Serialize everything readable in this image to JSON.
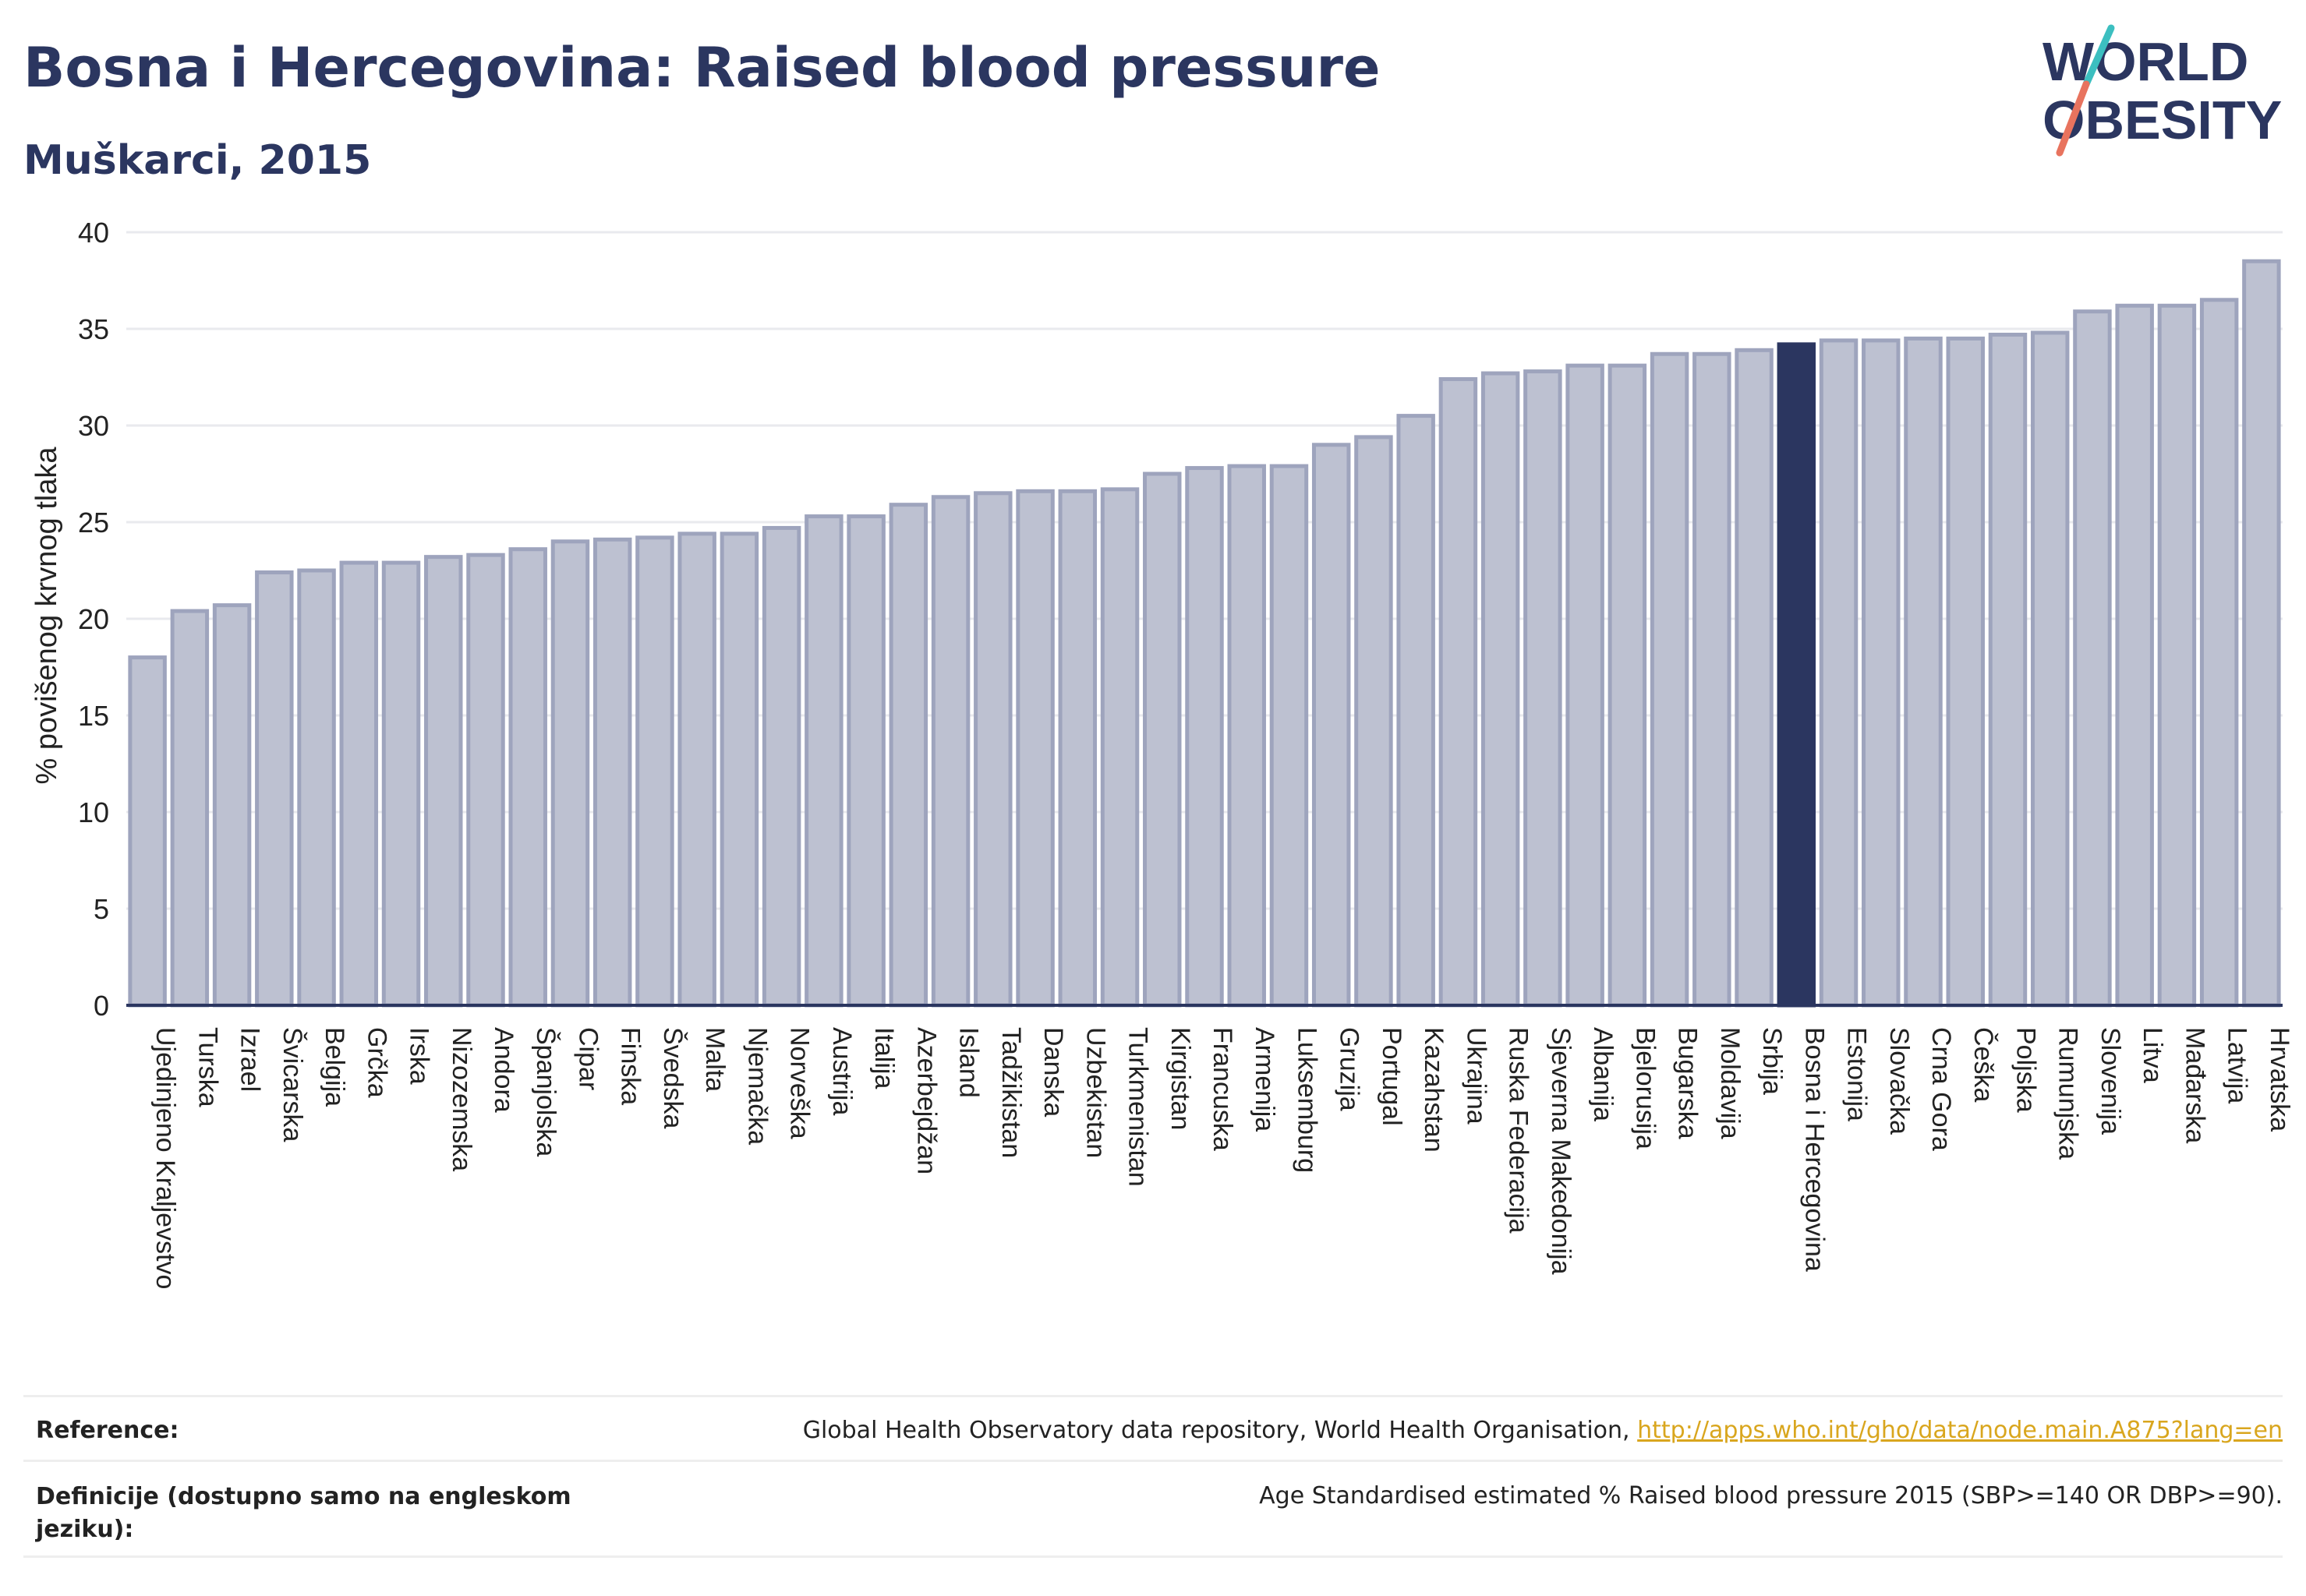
{
  "header": {
    "title": "Bosna i Hercegovina: Raised blood pressure",
    "subtitle": "Muškarci, 2015"
  },
  "logo": {
    "line1": "WORLD",
    "line2": "OBESITY"
  },
  "colors": {
    "bar": "#bdc1d1",
    "bar_stroke": "#9ea4bd",
    "highlight": "#2b3660",
    "text": "#2b3660",
    "grid": "#e9eaee",
    "link": "#d9a61e",
    "logo_teal": "#3cbfc0",
    "logo_coral": "#e8735e"
  },
  "chart_data": {
    "type": "bar",
    "ylabel": "% povišenog krvnog tlaka",
    "ylim": [
      0,
      40
    ],
    "yticks": [
      0,
      5,
      10,
      15,
      20,
      25,
      30,
      35,
      40
    ],
    "grid": true,
    "highlight": "Bosna i Hercegovina",
    "categories": [
      "Ujedinjeno Kraljevstvo",
      "Turska",
      "Izrael",
      "Švicarska",
      "Belgija",
      "Grčka",
      "Irska",
      "Nizozemska",
      "Andora",
      "Španjolska",
      "Cipar",
      "Finska",
      "Švedska",
      "Malta",
      "Njemačka",
      "Norveška",
      "Austrija",
      "Italija",
      "Azerbejdžan",
      "Island",
      "Tadžikistan",
      "Danska",
      "Uzbekistan",
      "Turkmenistan",
      "Kirgistan",
      "Francuska",
      "Armenija",
      "Luksemburg",
      "Gruzija",
      "Portugal",
      "Kazahstan",
      "Ukrajina",
      "Ruska Federacija",
      "Sjeverna Makedonija",
      "Albanija",
      "Bjelorusija",
      "Bugarska",
      "Moldavija",
      "Srbija",
      "Bosna i Hercegovina",
      "Estonija",
      "Slovačka",
      "Crna Gora",
      "Češka",
      "Poljska",
      "Rumunjska",
      "Slovenija",
      "Litva",
      "Mađarska",
      "Latvija",
      "Hrvatska"
    ],
    "values": [
      18.0,
      20.4,
      20.7,
      22.4,
      22.5,
      22.9,
      22.9,
      23.2,
      23.3,
      23.6,
      24.0,
      24.1,
      24.2,
      24.4,
      24.4,
      24.7,
      25.3,
      25.3,
      25.9,
      26.3,
      26.5,
      26.6,
      26.6,
      26.7,
      27.5,
      27.8,
      27.9,
      27.9,
      29.0,
      29.4,
      30.5,
      32.4,
      32.7,
      32.8,
      33.1,
      33.1,
      33.7,
      33.7,
      33.9,
      34.2,
      34.4,
      34.4,
      34.5,
      34.5,
      34.7,
      34.8,
      35.9,
      36.2,
      36.2,
      36.5,
      38.5
    ]
  },
  "footer": {
    "reference_label": "Reference:",
    "reference_text": "Global Health Observatory data repository, World Health Organisation,",
    "reference_link": "http://apps.who.int/gho/data/node.main.A875?lang=en",
    "definition_label_line1": "Definicije (dostupno samo na engleskom",
    "definition_label_line2": "jeziku):",
    "definition_text": "Age Standardised estimated % Raised blood pressure 2015 (SBP>=140 OR DBP>=90)."
  }
}
